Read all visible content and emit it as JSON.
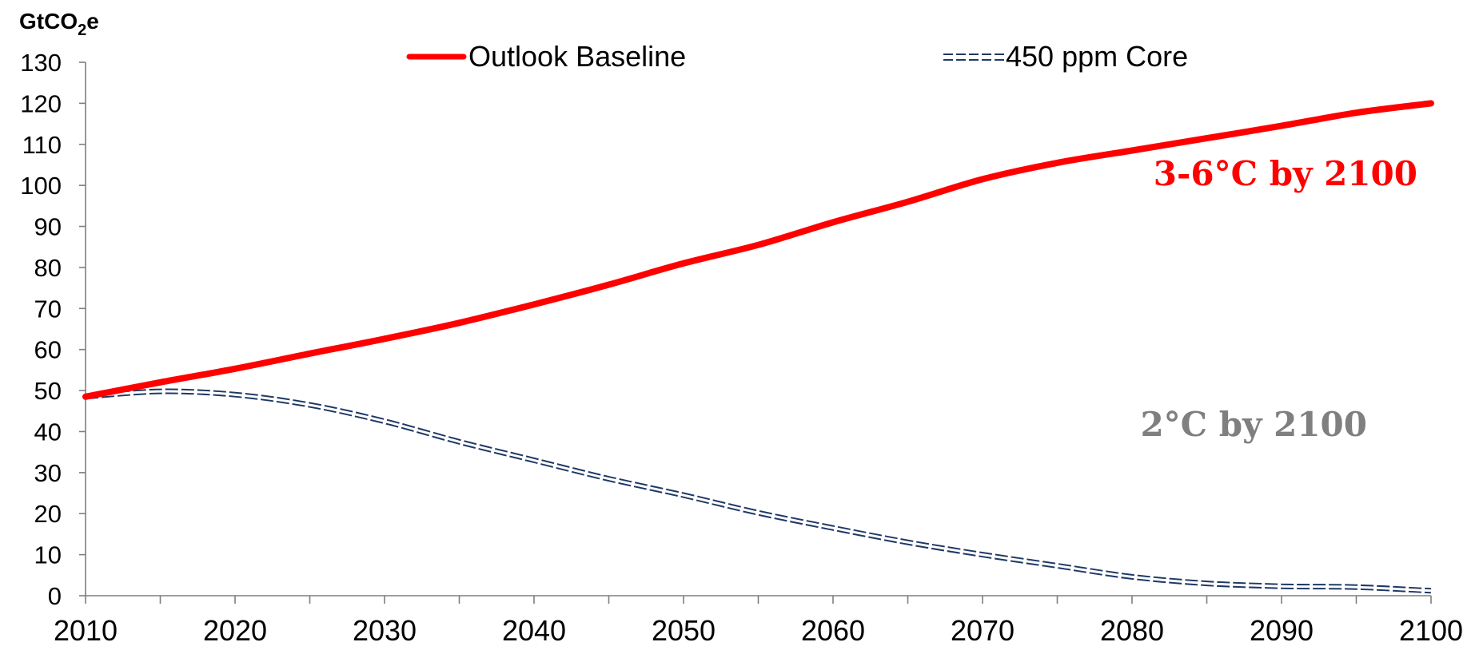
{
  "chart_data": {
    "type": "line",
    "title": "",
    "ylabel": "GtCO2e",
    "ylabel_parts": {
      "prefix": "GtCO",
      "subscript": "2",
      "suffix": "e"
    },
    "xlabel": "",
    "xlim": [
      2010,
      2100
    ],
    "ylim": [
      0,
      130
    ],
    "x_ticks": [
      2010,
      2020,
      2030,
      2040,
      2050,
      2060,
      2070,
      2080,
      2090,
      2100
    ],
    "x_tick_labels": [
      "2010",
      "2020",
      "2030",
      "2040",
      "2050",
      "2060",
      "2070",
      "2080",
      "2090",
      "2100"
    ],
    "y_ticks": [
      0,
      10,
      20,
      30,
      40,
      50,
      60,
      70,
      80,
      90,
      100,
      110,
      120,
      130
    ],
    "y_tick_labels": [
      "0",
      "10",
      "20",
      "30",
      "40",
      "50",
      "60",
      "70",
      "80",
      "90",
      "100",
      "110",
      "120",
      "130"
    ],
    "grid": false,
    "legend_position": "top",
    "series": [
      {
        "name": "Outlook Baseline",
        "color": "#ff0000",
        "style": "solid-thick",
        "x": [
          2010,
          2015,
          2020,
          2025,
          2030,
          2035,
          2040,
          2045,
          2050,
          2055,
          2060,
          2065,
          2070,
          2075,
          2080,
          2085,
          2090,
          2095,
          2100
        ],
        "values": [
          48.5,
          52,
          55.3,
          59,
          62.6,
          66.5,
          71,
          75.8,
          81,
          85.5,
          91,
          96,
          101.5,
          105.5,
          108.5,
          111.5,
          114.5,
          117.7,
          120
        ]
      },
      {
        "name": "450 ppm Core",
        "color": "#1f3864",
        "style": "double-dashed",
        "x": [
          2010,
          2015,
          2020,
          2025,
          2030,
          2035,
          2040,
          2045,
          2050,
          2055,
          2060,
          2065,
          2070,
          2075,
          2080,
          2085,
          2090,
          2095,
          2100
        ],
        "values": [
          48.5,
          49.8,
          49,
          46.5,
          42.5,
          37.5,
          33,
          28.5,
          24.5,
          20.2,
          16.5,
          13,
          10,
          7.3,
          4.6,
          3,
          2.3,
          2.1,
          1.2
        ]
      }
    ],
    "annotations": [
      {
        "text": "3-6°C by 2100",
        "color": "#ff0000"
      },
      {
        "text": "2°C by 2100",
        "color": "#7f7f7f"
      }
    ]
  }
}
